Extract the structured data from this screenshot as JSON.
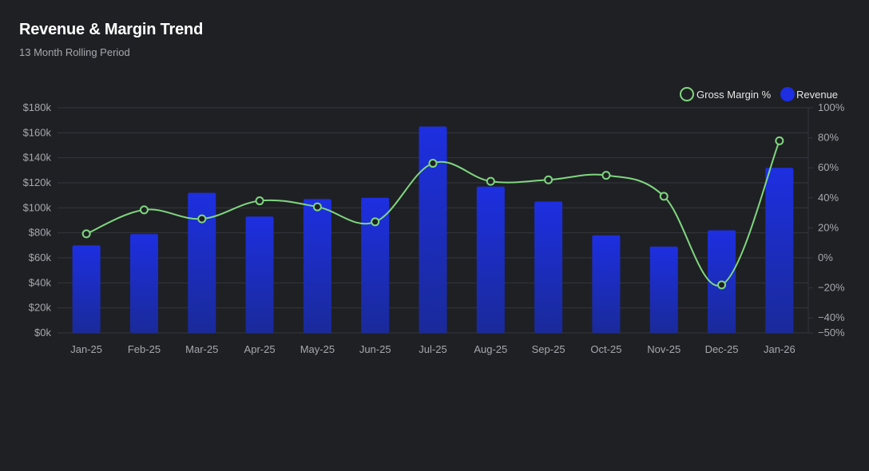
{
  "header": {
    "title": "Revenue & Margin Trend",
    "subtitle": "13 Month Rolling Period"
  },
  "colors": {
    "bar_top": "#1d2fe0",
    "bar_bottom": "#1a2a9a",
    "line": "#7fd77f",
    "grid": "#34363c",
    "background": "#1f2024"
  },
  "chart_data": {
    "type": "bar",
    "categories": [
      "Jan-25",
      "Feb-25",
      "Mar-25",
      "Apr-25",
      "May-25",
      "Jun-25",
      "Jul-25",
      "Aug-25",
      "Sep-25",
      "Oct-25",
      "Nov-25",
      "Dec-25",
      "Jan-26"
    ],
    "series": [
      {
        "name": "Revenue",
        "type": "bar",
        "axis": "left",
        "values": [
          70000,
          79000,
          112000,
          93000,
          107000,
          108000,
          165000,
          117000,
          105000,
          78000,
          69000,
          82000,
          132000
        ]
      },
      {
        "name": "Gross Margin %",
        "type": "line",
        "axis": "right",
        "values": [
          16,
          32,
          26,
          38,
          34,
          24,
          63,
          51,
          52,
          55,
          41,
          -18,
          78
        ]
      }
    ],
    "y_left": {
      "min": 0,
      "max": 180000,
      "ticks": [
        0,
        20000,
        40000,
        60000,
        80000,
        100000,
        120000,
        140000,
        160000,
        180000
      ],
      "tick_labels": [
        "$0k",
        "$20k",
        "$40k",
        "$60k",
        "$80k",
        "$100k",
        "$120k",
        "$140k",
        "$160k",
        "$180k"
      ]
    },
    "y_right": {
      "min": -50,
      "max": 100,
      "ticks": [
        -50,
        -40,
        -20,
        0,
        20,
        40,
        60,
        80,
        100
      ],
      "tick_labels": [
        "−50%",
        "−40%",
        "−20%",
        "0%",
        "20%",
        "40%",
        "60%",
        "80%",
        "100%"
      ]
    },
    "grid": true,
    "legend_position": "top-right"
  }
}
